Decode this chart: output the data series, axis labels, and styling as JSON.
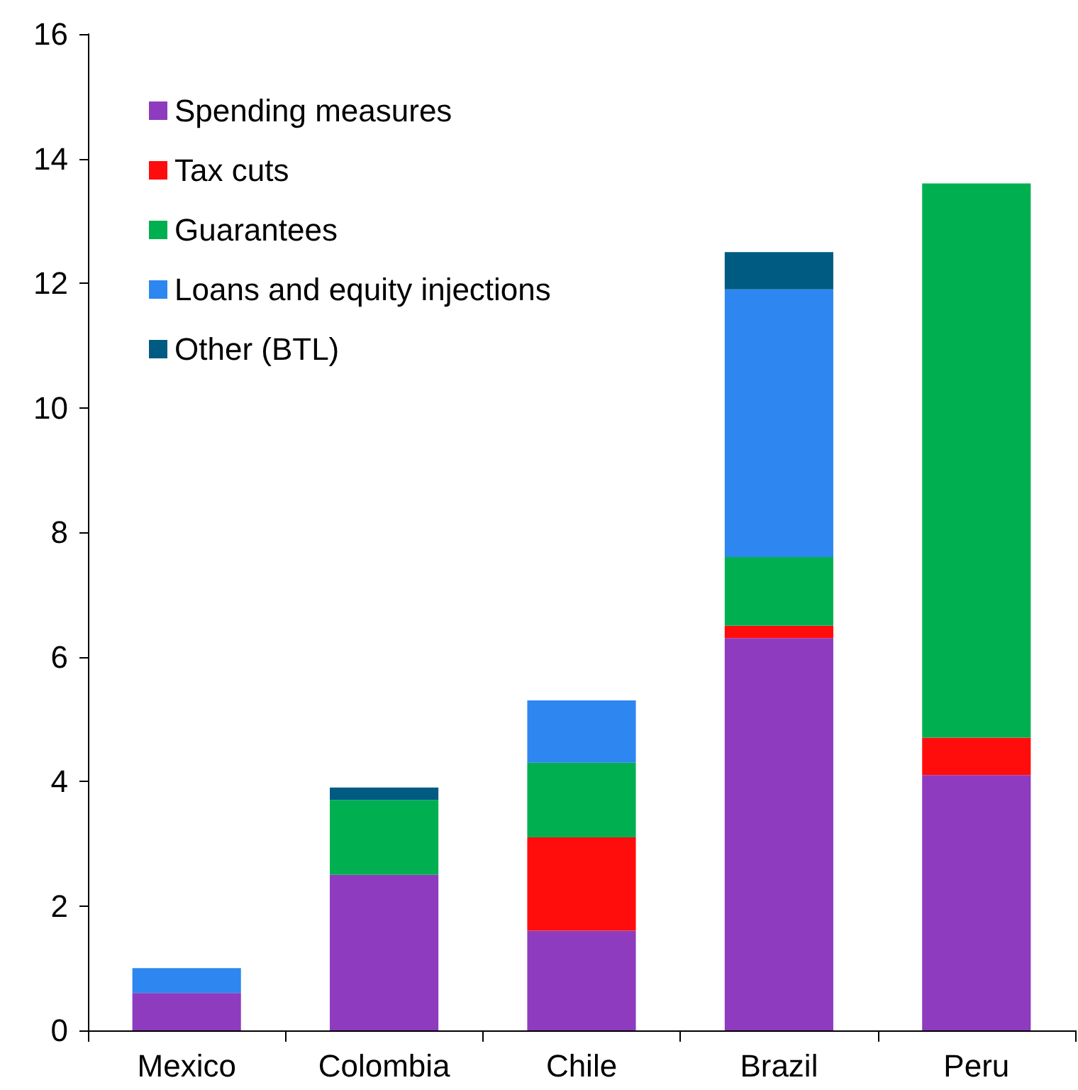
{
  "chart_data": {
    "type": "bar",
    "stacked": true,
    "categories": [
      "Mexico",
      "Colombia",
      "Chile",
      "Brazil",
      "Peru"
    ],
    "series": [
      {
        "name": "Spending measures",
        "color": "#8e3bbf",
        "values": [
          0.6,
          2.5,
          1.6,
          6.3,
          4.1
        ]
      },
      {
        "name": "Tax cuts",
        "color": "#ff0d0d",
        "values": [
          null,
          null,
          1.5,
          0.2,
          0.6
        ]
      },
      {
        "name": "Guarantees",
        "color": "#00b050",
        "values": [
          null,
          1.2,
          1.2,
          1.1,
          8.9
        ]
      },
      {
        "name": "Loans and equity injections",
        "color": "#2e86f0",
        "values": [
          0.4,
          null,
          1.0,
          4.3,
          null
        ]
      },
      {
        "name": "Other (BTL)",
        "color": "#005b82",
        "values": [
          null,
          0.2,
          null,
          0.6,
          null
        ]
      }
    ],
    "ylim": [
      0,
      16
    ],
    "yticks": [
      0,
      2,
      4,
      6,
      8,
      10,
      12,
      14,
      16
    ],
    "grid": false,
    "legend": "top left"
  }
}
